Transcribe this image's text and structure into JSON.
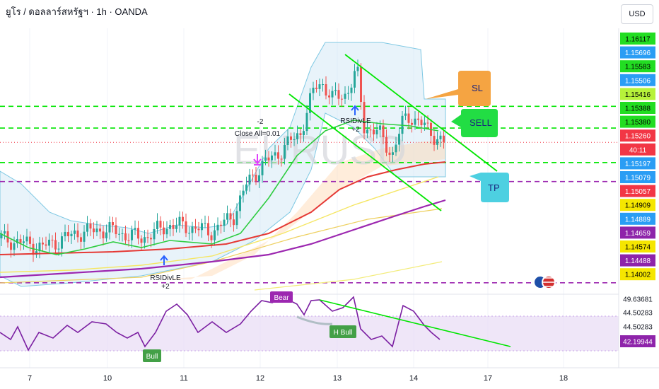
{
  "header": {
    "title": "ยูโร / ดอลลาร์สหรัฐฯ · 1h · OANDA",
    "currency": "USD"
  },
  "watermark": "EURUSD",
  "price_scale": {
    "labels": [
      {
        "text": "1.16117",
        "bg": "#22dd22",
        "fg": "#000000"
      },
      {
        "text": "1.15696",
        "bg": "#2a9df4",
        "fg": "#ffffff"
      },
      {
        "text": "1.15583",
        "bg": "#22dd22",
        "fg": "#000000"
      },
      {
        "text": "1.15506",
        "bg": "#2a9df4",
        "fg": "#ffffff"
      },
      {
        "text": "1.15416",
        "bg": "#b7f23a",
        "fg": "#000000"
      },
      {
        "text": "1.15388",
        "bg": "#22dd22",
        "fg": "#000000"
      },
      {
        "text": "1.15380",
        "bg": "#22dd22",
        "fg": "#000000"
      },
      {
        "text": "1.15260",
        "bg": "#f23645",
        "fg": "#ffffff"
      },
      {
        "text": "40:11",
        "bg": "#f23645",
        "fg": "#ffffff"
      },
      {
        "text": "1.15197",
        "bg": "#2a9df4",
        "fg": "#ffffff"
      },
      {
        "text": "1.15079",
        "bg": "#2a9df4",
        "fg": "#ffffff"
      },
      {
        "text": "1.15057",
        "bg": "#f23645",
        "fg": "#ffffff"
      },
      {
        "text": "1.14909",
        "bg": "#f5e600",
        "fg": "#000000"
      },
      {
        "text": "1.14889",
        "bg": "#2a9df4",
        "fg": "#ffffff"
      },
      {
        "text": "1.14659",
        "bg": "#8e24aa",
        "fg": "#ffffff"
      },
      {
        "text": "1.14574",
        "bg": "#f5e600",
        "fg": "#000000"
      },
      {
        "text": "1.14488",
        "bg": "#8e24aa",
        "fg": "#ffffff"
      },
      {
        "text": "1.14002",
        "bg": "#f5e600",
        "fg": "#000000"
      }
    ]
  },
  "rsi_scale": [
    {
      "text": "49.63681",
      "bg": "#ffffff",
      "fg": "#131722"
    },
    {
      "text": "44.50283",
      "bg": "#ffffff",
      "fg": "#131722"
    },
    {
      "text": "44.50283",
      "bg": "#ffffff",
      "fg": "#131722"
    },
    {
      "text": "42.19944",
      "bg": "#8e24aa",
      "fg": "#ffffff"
    }
  ],
  "annotations": {
    "sl": "SL",
    "sell": "SELL",
    "tp": "TP",
    "close_count": "-2",
    "close_all": "Close All=0.01",
    "rsi_div_top": "RSIDivLE",
    "rsi_div_top_n": "+2",
    "rsi_div_bottom": "RSIDivLE",
    "rsi_div_bottom_n": "+2",
    "bear": "Bear",
    "h_bull": "H Bull",
    "bull": "Bull"
  },
  "colors": {
    "green_line": "#00e600",
    "purple_line": "#9c27b0",
    "red_ma": "#e53935",
    "candle_up": "#26a69a",
    "candle_down": "#ef5350",
    "channel": "#7ec8e3"
  },
  "chart_data": {
    "type": "candlestick",
    "symbol": "EURUSD",
    "timeframe": "1h",
    "x_ticks": [
      "7",
      "10",
      "11",
      "12",
      "13",
      "14",
      "17",
      "18"
    ],
    "ylim": [
      1.1395,
      1.1625
    ],
    "horizontal_levels": [
      {
        "price": 1.15583,
        "color": "green",
        "style": "dashed"
      },
      {
        "price": 1.15388,
        "color": "green",
        "style": "dashed"
      },
      {
        "price": 1.15079,
        "color": "green",
        "style": "dashed"
      },
      {
        "price": 1.14909,
        "color": "purple",
        "style": "dashed"
      },
      {
        "price": 1.14002,
        "color": "purple",
        "style": "dashed"
      }
    ],
    "last_price": 1.1526,
    "rsi": {
      "range": [
        38,
        52
      ],
      "last": 42.19944,
      "levels": [
        49.63681,
        44.50283
      ]
    }
  }
}
